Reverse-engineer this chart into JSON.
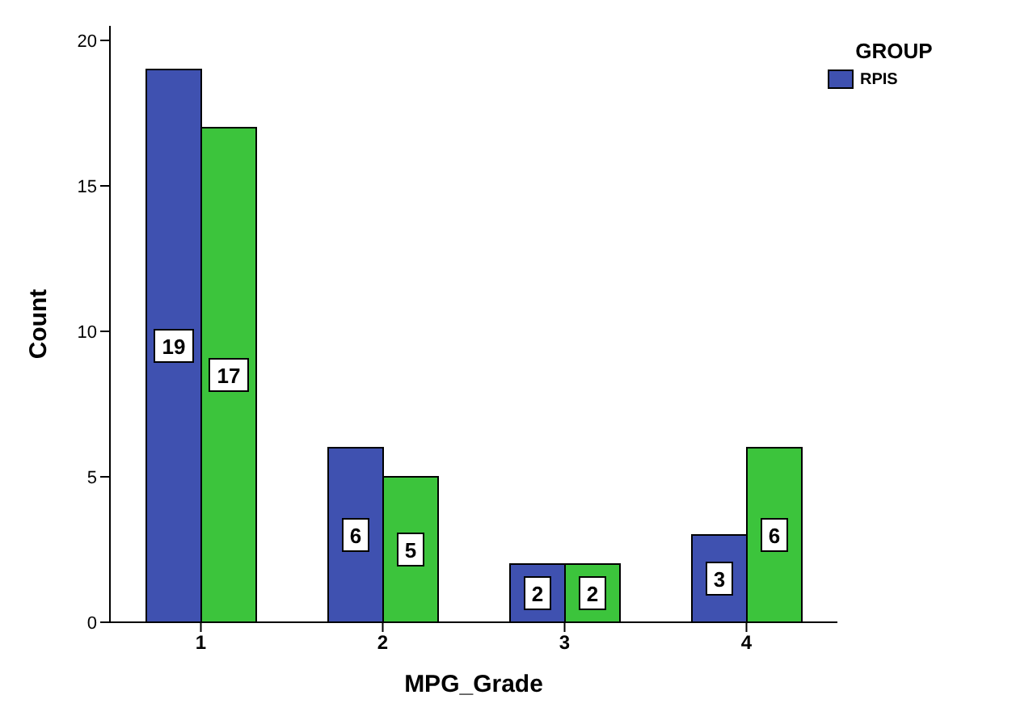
{
  "chart_data": {
    "type": "bar",
    "xlabel": "MPG_Grade",
    "ylabel": "Count",
    "legend_title": "GROUP",
    "categories": [
      "1",
      "2",
      "3",
      "4"
    ],
    "series": [
      {
        "name": "RPIS",
        "color": "#3f51b0",
        "values": [
          19,
          6,
          2,
          3
        ]
      },
      {
        "color": "#3cc43c",
        "values": [
          17,
          5,
          2,
          6
        ]
      }
    ],
    "ylim": [
      0,
      20.5
    ],
    "yticks": [
      0,
      5,
      10,
      15,
      20
    ],
    "grid": false,
    "legend": "top right",
    "data_labels": true
  }
}
